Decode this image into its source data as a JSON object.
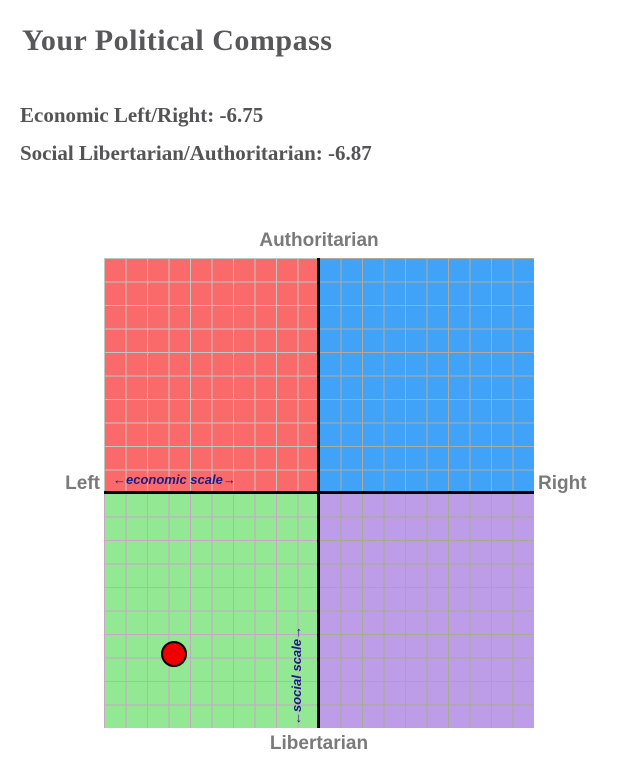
{
  "page": {
    "title": "Your Political Compass"
  },
  "scores": [
    {
      "label": "Economic Left/Right:",
      "value": "-6.75"
    },
    {
      "label": "Social Libertarian/Authoritarian:",
      "value": "-6.87"
    }
  ],
  "chart_data": {
    "type": "scatter",
    "title": "Your Political Compass",
    "xlabel": "←economic scale→",
    "ylabel": "←social scale→",
    "axis_labels": {
      "top": "Authoritarian",
      "bottom": "Libertarian",
      "left": "Left",
      "right": "Right"
    },
    "xlim": [
      -10,
      10
    ],
    "ylim": [
      -10,
      10
    ],
    "grid": true,
    "grid_step": 1,
    "points": [
      {
        "x": -6.75,
        "y": -6.87,
        "quadrant": "libertarian-left"
      }
    ],
    "colors": {
      "quadrant_auth_left": "#fa6a6a",
      "quadrant_auth_right": "#41a3f7",
      "quadrant_lib_left": "#93e893",
      "quadrant_lib_right": "#be9de8",
      "point_fill": "#ee0000",
      "point_border": "#000000",
      "axis_line": "#000000",
      "scale_label_color": "#1c1c85",
      "outer_label_color": "#7a7a7a"
    }
  }
}
